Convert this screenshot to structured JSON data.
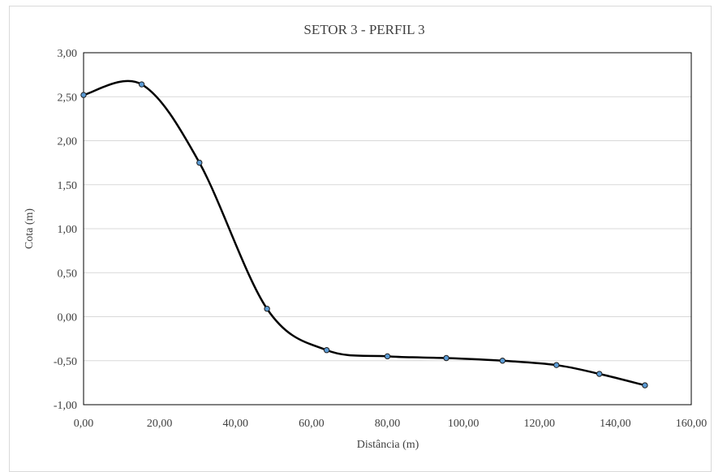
{
  "chart_data": {
    "type": "scatter",
    "title": "SETOR 3 - PERFIL 3",
    "xlabel": "Distância (m)",
    "ylabel": "Cota (m)",
    "xlim": [
      0,
      160
    ],
    "ylim": [
      -1,
      3
    ],
    "x_ticks": [
      "0,00",
      "20,00",
      "40,00",
      "60,00",
      "80,00",
      "100,00",
      "120,00",
      "140,00",
      "160,00"
    ],
    "y_ticks": [
      "-1,00",
      "-0,50",
      "0,00",
      "0,50",
      "1,00",
      "1,50",
      "2,00",
      "2,50",
      "3,00"
    ],
    "grid": true,
    "legend": "none",
    "line_style": "smoothed",
    "line_color": "#000000",
    "marker_color": "#5b9bd5",
    "series": [
      {
        "x": [
          0.0,
          15.3,
          30.5,
          48.3,
          64.0,
          80.0,
          95.5,
          110.3,
          124.5,
          135.8,
          147.8
        ],
        "y": [
          2.52,
          2.64,
          1.75,
          0.09,
          -0.38,
          -0.45,
          -0.47,
          -0.5,
          -0.55,
          -0.65,
          -0.78
        ]
      }
    ]
  }
}
